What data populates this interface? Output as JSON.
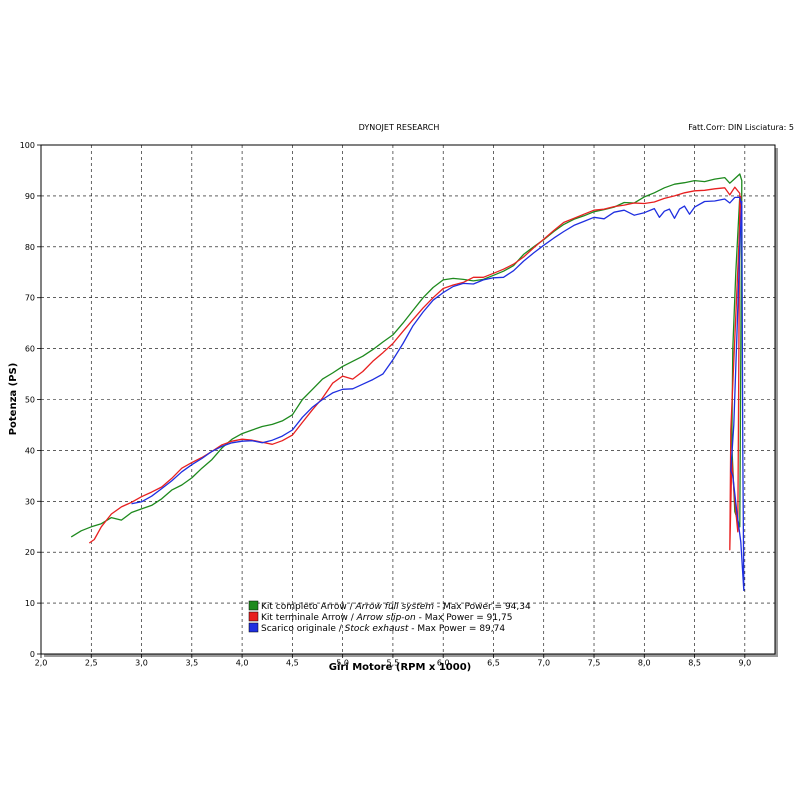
{
  "header": {
    "title": "DYNOJET RESEARCH",
    "correction": "Fatt.Corr: DIN  Lisciatura: 5"
  },
  "chart_data": {
    "type": "line",
    "xlabel": "Giri Motore (RPM x 1000)",
    "ylabel": "Potenza (PS)",
    "xlim": [
      2.0,
      9.3
    ],
    "ylim": [
      0,
      100
    ],
    "x_ticks": [
      "2,0",
      "2,5",
      "3,0",
      "3,5",
      "4,0",
      "4,5",
      "5,0",
      "5,5",
      "6,0",
      "6,5",
      "7,0",
      "7,5",
      "8,0",
      "8,5",
      "9,0"
    ],
    "y_ticks": [
      "0",
      "10",
      "20",
      "30",
      "40",
      "50",
      "60",
      "70",
      "80",
      "90",
      "100"
    ],
    "grid": true,
    "legend_position": "bottom-left",
    "series": [
      {
        "name_plain": "Kit completo Arrow / ",
        "name_italic": "Arrow full system",
        "max_label": " - Max Power = 94,34",
        "color": "#1e8a1e",
        "points": [
          [
            2.3,
            23
          ],
          [
            2.4,
            24.2
          ],
          [
            2.5,
            25
          ],
          [
            2.6,
            25.6
          ],
          [
            2.7,
            26.8
          ],
          [
            2.8,
            26.3
          ],
          [
            2.9,
            27.8
          ],
          [
            3.0,
            28.5
          ],
          [
            3.1,
            29.2
          ],
          [
            3.2,
            30.5
          ],
          [
            3.3,
            32.2
          ],
          [
            3.4,
            33.2
          ],
          [
            3.5,
            34.6
          ],
          [
            3.6,
            36.5
          ],
          [
            3.7,
            38.2
          ],
          [
            3.8,
            40.5
          ],
          [
            3.9,
            42.2
          ],
          [
            4.0,
            43.3
          ],
          [
            4.1,
            44.0
          ],
          [
            4.2,
            44.7
          ],
          [
            4.3,
            45.1
          ],
          [
            4.4,
            45.8
          ],
          [
            4.5,
            47.0
          ],
          [
            4.6,
            50.0
          ],
          [
            4.7,
            52.0
          ],
          [
            4.8,
            54.0
          ],
          [
            4.9,
            55.2
          ],
          [
            5.0,
            56.5
          ],
          [
            5.1,
            57.5
          ],
          [
            5.2,
            58.5
          ],
          [
            5.3,
            59.8
          ],
          [
            5.4,
            61.3
          ],
          [
            5.5,
            62.7
          ],
          [
            5.6,
            65.0
          ],
          [
            5.7,
            67.5
          ],
          [
            5.8,
            70.0
          ],
          [
            5.9,
            72.0
          ],
          [
            6.0,
            73.5
          ],
          [
            6.1,
            73.8
          ],
          [
            6.2,
            73.6
          ],
          [
            6.3,
            73.3
          ],
          [
            6.4,
            73.6
          ],
          [
            6.5,
            74.4
          ],
          [
            6.6,
            75.2
          ],
          [
            6.7,
            76.3
          ],
          [
            6.8,
            78.5
          ],
          [
            6.9,
            80.0
          ],
          [
            7.0,
            81.4
          ],
          [
            7.1,
            83.0
          ],
          [
            7.2,
            84.4
          ],
          [
            7.3,
            85.4
          ],
          [
            7.4,
            86.1
          ],
          [
            7.5,
            86.9
          ],
          [
            7.6,
            87.3
          ],
          [
            7.7,
            87.8
          ],
          [
            7.8,
            88.7
          ],
          [
            7.9,
            88.6
          ],
          [
            8.0,
            89.8
          ],
          [
            8.1,
            90.6
          ],
          [
            8.2,
            91.6
          ],
          [
            8.3,
            92.3
          ],
          [
            8.4,
            92.6
          ],
          [
            8.5,
            93.0
          ],
          [
            8.6,
            92.8
          ],
          [
            8.7,
            93.3
          ],
          [
            8.8,
            93.6
          ],
          [
            8.85,
            92.5
          ],
          [
            8.9,
            93.4
          ],
          [
            8.95,
            94.3
          ],
          [
            8.97,
            93.0
          ],
          [
            8.95,
            25.0
          ],
          [
            8.9,
            28.0
          ],
          [
            8.87,
            41.0
          ],
          [
            8.88,
            60.0
          ],
          [
            8.91,
            75.0
          ],
          [
            8.95,
            90.0
          ]
        ]
      },
      {
        "name_plain": "Kit terminale Arrow / ",
        "name_italic": "Arrow slip-on",
        "max_label": " - Max Power = 91,75",
        "color": "#e82020",
        "points": [
          [
            2.48,
            21.8
          ],
          [
            2.53,
            22.5
          ],
          [
            2.6,
            25.0
          ],
          [
            2.7,
            27.5
          ],
          [
            2.8,
            28.9
          ],
          [
            2.9,
            29.8
          ],
          [
            3.0,
            30.9
          ],
          [
            3.1,
            31.8
          ],
          [
            3.2,
            32.8
          ],
          [
            3.3,
            34.5
          ],
          [
            3.4,
            36.5
          ],
          [
            3.5,
            37.6
          ],
          [
            3.6,
            38.6
          ],
          [
            3.7,
            39.8
          ],
          [
            3.8,
            41.1
          ],
          [
            3.9,
            41.8
          ],
          [
            4.0,
            42.2
          ],
          [
            4.1,
            42.0
          ],
          [
            4.2,
            41.6
          ],
          [
            4.3,
            41.2
          ],
          [
            4.4,
            41.9
          ],
          [
            4.5,
            43.0
          ],
          [
            4.6,
            45.5
          ],
          [
            4.7,
            48.0
          ],
          [
            4.8,
            50.3
          ],
          [
            4.9,
            53.2
          ],
          [
            5.0,
            54.6
          ],
          [
            5.1,
            54.0
          ],
          [
            5.2,
            55.5
          ],
          [
            5.3,
            57.5
          ],
          [
            5.4,
            59.2
          ],
          [
            5.5,
            61.0
          ],
          [
            5.6,
            63.4
          ],
          [
            5.7,
            65.7
          ],
          [
            5.8,
            68.0
          ],
          [
            5.9,
            70.0
          ],
          [
            6.0,
            71.8
          ],
          [
            6.1,
            72.5
          ],
          [
            6.2,
            73.0
          ],
          [
            6.3,
            74.0
          ],
          [
            6.4,
            74.0
          ],
          [
            6.5,
            74.8
          ],
          [
            6.6,
            75.6
          ],
          [
            6.7,
            76.6
          ],
          [
            6.8,
            78.0
          ],
          [
            6.9,
            79.8
          ],
          [
            7.0,
            81.5
          ],
          [
            7.1,
            83.2
          ],
          [
            7.2,
            84.8
          ],
          [
            7.3,
            85.6
          ],
          [
            7.4,
            86.4
          ],
          [
            7.5,
            87.2
          ],
          [
            7.6,
            87.4
          ],
          [
            7.7,
            87.9
          ],
          [
            7.8,
            88.2
          ],
          [
            7.9,
            88.6
          ],
          [
            8.0,
            88.5
          ],
          [
            8.1,
            88.8
          ],
          [
            8.2,
            89.5
          ],
          [
            8.3,
            90.0
          ],
          [
            8.4,
            90.6
          ],
          [
            8.5,
            91.0
          ],
          [
            8.6,
            91.1
          ],
          [
            8.7,
            91.4
          ],
          [
            8.8,
            91.6
          ],
          [
            8.85,
            90.2
          ],
          [
            8.9,
            91.7
          ],
          [
            8.95,
            90.5
          ],
          [
            8.93,
            24.0
          ],
          [
            8.9,
            30.0
          ],
          [
            8.87,
            38.0
          ],
          [
            8.85,
            20.5
          ],
          [
            8.86,
            44.0
          ],
          [
            8.9,
            62.0
          ],
          [
            8.94,
            80.0
          ],
          [
            8.96,
            90.0
          ]
        ]
      },
      {
        "name_plain": "Scarico originale / ",
        "name_italic": "Stock exhaust",
        "max_label": " - Max Power = 89,74",
        "color": "#1f2fe0",
        "points": [
          [
            2.9,
            29.5
          ],
          [
            3.0,
            29.9
          ],
          [
            3.1,
            31.0
          ],
          [
            3.2,
            32.5
          ],
          [
            3.3,
            34.0
          ],
          [
            3.4,
            35.8
          ],
          [
            3.5,
            37.2
          ],
          [
            3.6,
            38.4
          ],
          [
            3.7,
            39.8
          ],
          [
            3.8,
            40.8
          ],
          [
            3.9,
            41.5
          ],
          [
            4.0,
            41.8
          ],
          [
            4.1,
            41.9
          ],
          [
            4.2,
            41.5
          ],
          [
            4.3,
            42.0
          ],
          [
            4.4,
            42.8
          ],
          [
            4.5,
            44.0
          ],
          [
            4.6,
            46.5
          ],
          [
            4.7,
            48.5
          ],
          [
            4.8,
            50.0
          ],
          [
            4.9,
            51.3
          ],
          [
            5.0,
            52.0
          ],
          [
            5.1,
            52.1
          ],
          [
            5.2,
            53.0
          ],
          [
            5.3,
            53.9
          ],
          [
            5.4,
            55.0
          ],
          [
            5.5,
            57.8
          ],
          [
            5.6,
            61.0
          ],
          [
            5.7,
            64.5
          ],
          [
            5.8,
            67.2
          ],
          [
            5.9,
            69.5
          ],
          [
            6.0,
            71.0
          ],
          [
            6.1,
            72.2
          ],
          [
            6.2,
            72.8
          ],
          [
            6.3,
            72.7
          ],
          [
            6.4,
            73.5
          ],
          [
            6.5,
            73.9
          ],
          [
            6.6,
            74.0
          ],
          [
            6.7,
            75.3
          ],
          [
            6.8,
            77.2
          ],
          [
            6.9,
            78.8
          ],
          [
            7.0,
            80.3
          ],
          [
            7.1,
            81.7
          ],
          [
            7.2,
            83.0
          ],
          [
            7.3,
            84.2
          ],
          [
            7.4,
            85.0
          ],
          [
            7.5,
            85.8
          ],
          [
            7.6,
            85.5
          ],
          [
            7.7,
            86.8
          ],
          [
            7.8,
            87.2
          ],
          [
            7.9,
            86.2
          ],
          [
            8.0,
            86.7
          ],
          [
            8.1,
            87.5
          ],
          [
            8.15,
            85.8
          ],
          [
            8.2,
            87.0
          ],
          [
            8.25,
            87.4
          ],
          [
            8.3,
            85.6
          ],
          [
            8.35,
            87.4
          ],
          [
            8.4,
            88.0
          ],
          [
            8.45,
            86.4
          ],
          [
            8.5,
            87.8
          ],
          [
            8.6,
            88.9
          ],
          [
            8.7,
            89.0
          ],
          [
            8.8,
            89.4
          ],
          [
            8.85,
            88.6
          ],
          [
            8.9,
            89.7
          ],
          [
            8.95,
            89.7
          ],
          [
            8.97,
            88.0
          ],
          [
            8.98,
            40.0
          ],
          [
            8.99,
            12.5
          ],
          [
            8.96,
            22.0
          ],
          [
            8.92,
            28.0
          ],
          [
            8.88,
            35.0
          ],
          [
            8.86,
            36.0
          ],
          [
            8.89,
            45.0
          ],
          [
            8.92,
            62.0
          ],
          [
            8.95,
            80.0
          ],
          [
            8.97,
            89.0
          ]
        ]
      }
    ]
  }
}
